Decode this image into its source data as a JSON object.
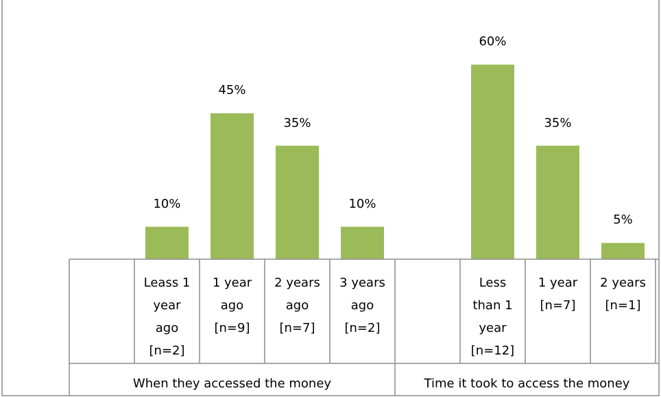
{
  "chart_data": {
    "type": "bar",
    "categories": [
      null,
      "Leass 1\nyear\nago\n[n=2]",
      "1 year\nago\n[n=9]",
      "2 years\nago\n[n=7]",
      "3 years\nago\n[n=2]",
      null,
      "Less\nthan 1\nyear\n[n=12]",
      "1 year\n[n=7]",
      "2 years\n[n=1]"
    ],
    "values": [
      null,
      10,
      45,
      35,
      10,
      null,
      60,
      35,
      5
    ],
    "value_labels": [
      null,
      "10%",
      "45%",
      "35%",
      "10%",
      null,
      "60%",
      "35%",
      "5%"
    ],
    "groups": [
      "When they accessed the money",
      "Time it took to access the money"
    ],
    "color": "#9bbb59",
    "ylim": [
      0,
      70
    ]
  }
}
